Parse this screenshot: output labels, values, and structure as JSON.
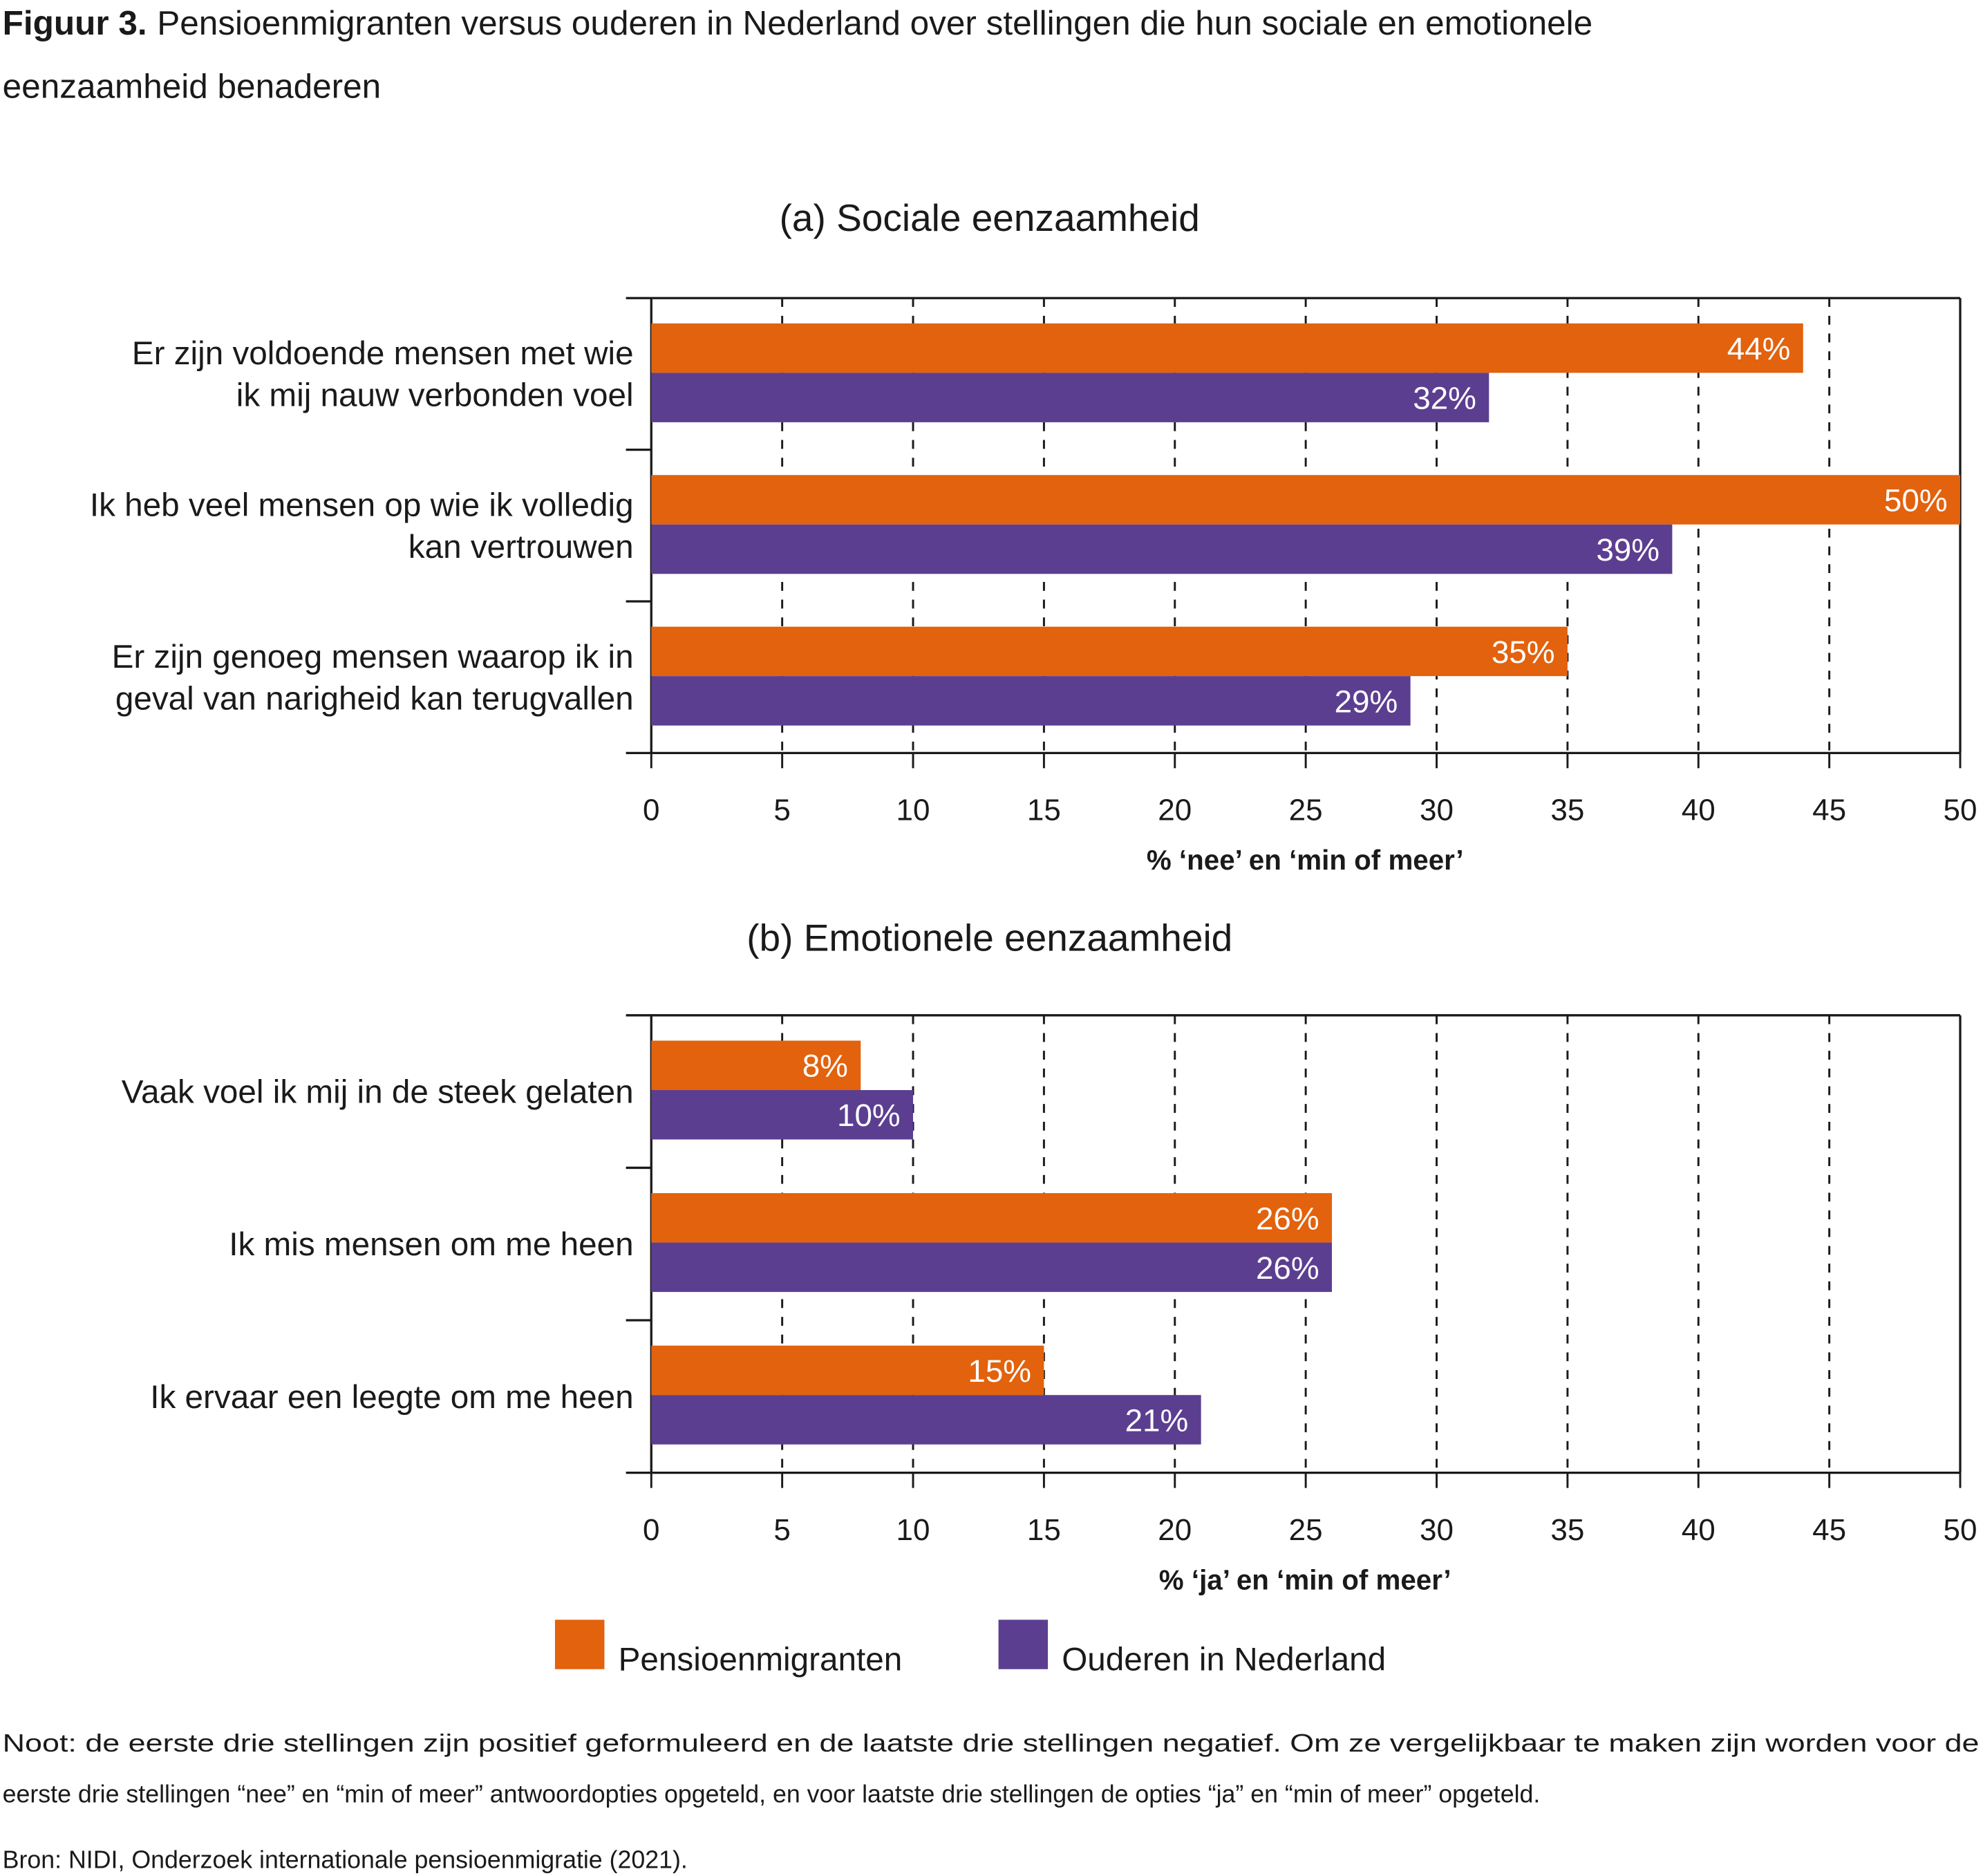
{
  "title": {
    "label": "Figuur 3.",
    "line1": "Pensioenmigranten versus ouderen in Nederland over stellingen die hun sociale en emotionele",
    "line2": "eenzaamheid benaderen"
  },
  "legend": [
    "Pensioenmigranten",
    "Ouderen in Nederland"
  ],
  "colors": {
    "Pensioenmigranten": "#e2620d",
    "Ouderen in Nederland": "#5c3e91"
  },
  "note": {
    "line1": "Noot: de eerste drie stellingen zijn positief geformuleerd en de laatste drie stellingen negatief. Om ze vergelijkbaar te maken zijn worden voor de",
    "line2": "eerste drie stellingen “nee” en “min of meer” antwoordopties opgeteld, en voor laatste drie stellingen de opties “ja” en “min of meer” opgeteld.",
    "source": "Bron: NIDI, Onderzoek internationale pensioenmigratie (2021)."
  },
  "chart_data": [
    {
      "type": "bar",
      "orientation": "horizontal",
      "title": "(a) Sociale eenzaamheid",
      "xlabel": "% ‘nee’ en ‘min of meer’",
      "xlim": [
        0,
        50
      ],
      "xticks": [
        "0",
        "5",
        "10",
        "15",
        "20",
        "25",
        "30",
        "35",
        "40",
        "45",
        "50"
      ],
      "grid": "vertical dashed",
      "categories": [
        [
          "Er zijn voldoende mensen met wie",
          "ik mij nauw verbonden voel"
        ],
        [
          "Ik heb veel mensen op wie ik volledig",
          "kan vertrouwen"
        ],
        [
          "Er zijn genoeg mensen waarop ik in",
          "geval van narigheid kan terugvallen"
        ]
      ],
      "series": [
        {
          "name": "Pensioenmigranten",
          "values": [
            44,
            50,
            35
          ],
          "labels": [
            "44%",
            "50%",
            "35%"
          ]
        },
        {
          "name": "Ouderen in Nederland",
          "values": [
            32,
            39,
            29
          ],
          "labels": [
            "32%",
            "39%",
            "29%"
          ]
        }
      ]
    },
    {
      "type": "bar",
      "orientation": "horizontal",
      "title": "(b) Emotionele eenzaamheid",
      "xlabel": "% ‘ja’ en ‘min of meer’",
      "xlim": [
        0,
        50
      ],
      "xticks": [
        "0",
        "5",
        "10",
        "15",
        "20",
        "25",
        "30",
        "35",
        "40",
        "45",
        "50"
      ],
      "grid": "vertical dashed",
      "categories": [
        [
          "Vaak voel ik mij in de steek gelaten"
        ],
        [
          "Ik mis mensen om me heen"
        ],
        [
          "Ik ervaar een leegte om me heen"
        ]
      ],
      "series": [
        {
          "name": "Pensioenmigranten",
          "values": [
            8,
            26,
            15
          ],
          "labels": [
            "8%",
            "26%",
            "15%"
          ]
        },
        {
          "name": "Ouderen in Nederland",
          "values": [
            10,
            26,
            21
          ],
          "labels": [
            "10%",
            "26%",
            "21%"
          ]
        }
      ],
      "legend_position": "bottom"
    }
  ]
}
